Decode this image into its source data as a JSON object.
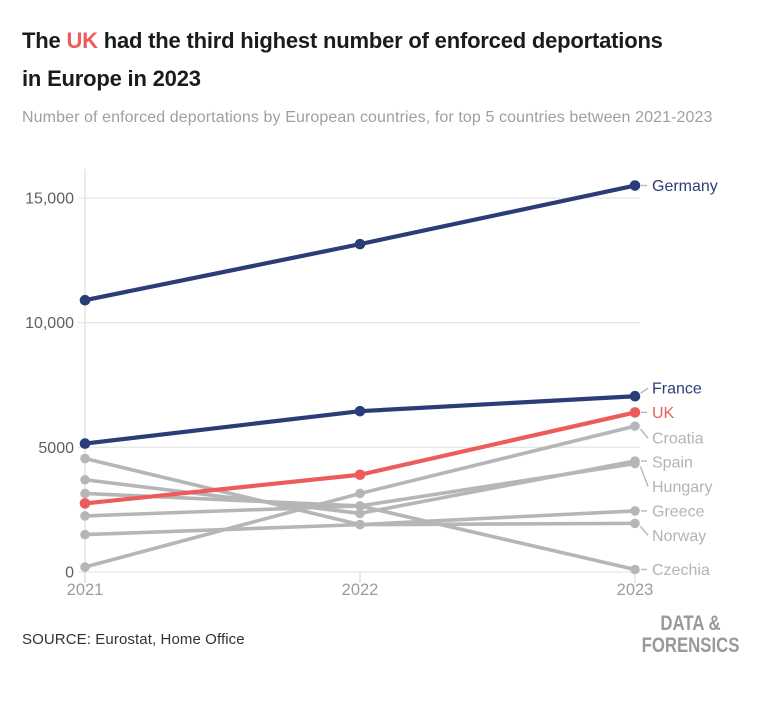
{
  "header": {
    "title_pre": "The ",
    "title_highlight": "UK",
    "title_post": " had the third highest number of enforced deportations",
    "title_line2": "in Europe in 2023",
    "subtitle": "Number of enforced deportations by European countries, for top 5 countries between 2021-2023"
  },
  "footer": {
    "source": "SOURCE: Eurostat, Home Office",
    "logo_line1": "DATA &",
    "logo_line2": "FORENSICS"
  },
  "colors": {
    "navy": "#2b3c78",
    "red": "#ec5c5a",
    "gray_line": "#b5b6b8",
    "gray_label": "#b2b4b6",
    "leader": "#b9bbbd",
    "grid": "#e7e8e9",
    "axis_line": "#dfe0e2",
    "y_label": "#5d6165",
    "x_label": "#9a9da0",
    "title_text": "#1b1b1b",
    "title_highlight": "#ec5c5a",
    "subtitle_text": "#9da0a2"
  },
  "chart_data": {
    "type": "line",
    "title": "The UK had the third highest number of enforced deportations in Europe in 2023",
    "subtitle": "Number of enforced deportations by European countries, for top 5 countries between 2021-2023",
    "x_categories": [
      "2021",
      "2022",
      "2023"
    ],
    "y_ticks": [
      {
        "value": 0,
        "label": "0"
      },
      {
        "value": 5000,
        "label": "5000"
      },
      {
        "value": 10000,
        "label": "10,000"
      },
      {
        "value": 15000,
        "label": "15,000"
      }
    ],
    "ylim": [
      0,
      16400
    ],
    "grid": "horizontal",
    "legend_position": "labels-at-line-end",
    "series": [
      {
        "name": "Germany",
        "color_key": "navy",
        "values": [
          10900,
          13150,
          15500
        ],
        "label_dy": 0
      },
      {
        "name": "France",
        "color_key": "navy",
        "values": [
          5150,
          6450,
          7050
        ],
        "label_dy": -8
      },
      {
        "name": "UK",
        "color_key": "red",
        "values": [
          2750,
          3900,
          6400
        ],
        "label_dy": 0
      },
      {
        "name": "Croatia",
        "color_key": "gray",
        "values": [
          200,
          3150,
          5850
        ],
        "label_dy": 12
      },
      {
        "name": "Spain",
        "color_key": "gray",
        "values": [
          3700,
          2350,
          4450
        ],
        "label_dy": 1
      },
      {
        "name": "Hungary",
        "color_key": "gray",
        "values": [
          2250,
          2650,
          4350
        ],
        "label_dy": 23
      },
      {
        "name": "Greece",
        "color_key": "gray",
        "values": [
          4550,
          1900,
          2450
        ],
        "label_dy": 0
      },
      {
        "name": "Norway",
        "color_key": "gray",
        "values": [
          1500,
          1900,
          1950
        ],
        "label_dy": 12
      },
      {
        "name": "Czechia",
        "color_key": "gray",
        "values": [
          3150,
          2650,
          100
        ],
        "label_dy": 0
      }
    ]
  }
}
